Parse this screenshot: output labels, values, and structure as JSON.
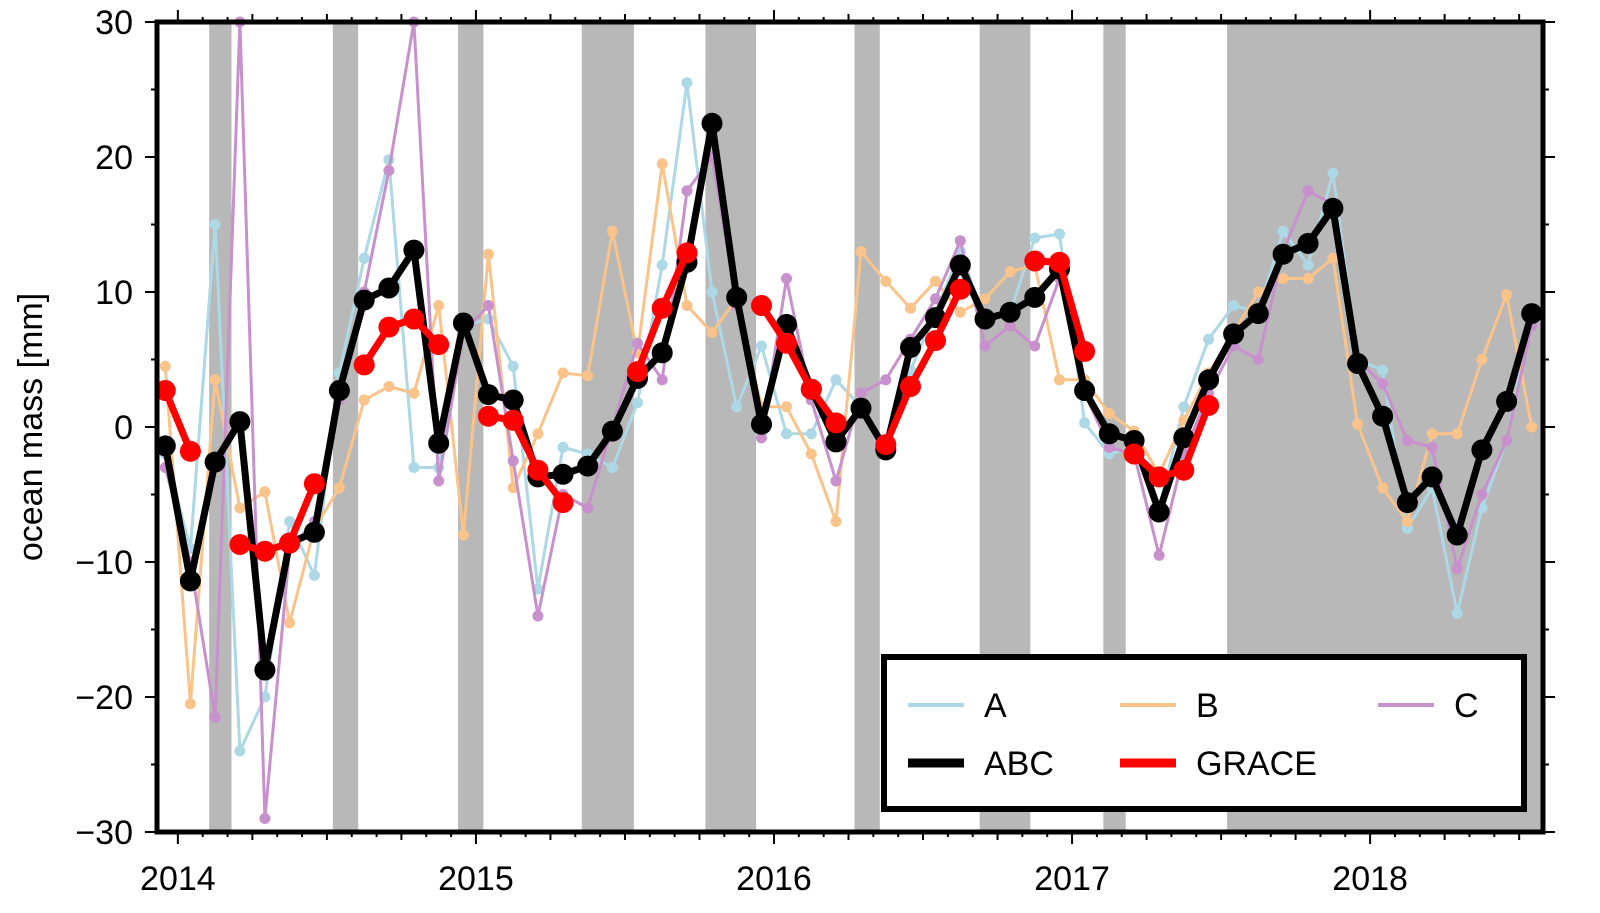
{
  "chart_data": {
    "type": "line",
    "title": "",
    "xlabel": "",
    "ylabel": "ocean mass [mm]",
    "xlim": [
      2013.93,
      2018.58
    ],
    "ylim": [
      -30,
      30
    ],
    "x_ticks": [
      {
        "value": 2014,
        "label": "2014"
      },
      {
        "value": 2015,
        "label": "2015"
      },
      {
        "value": 2016,
        "label": "2016"
      },
      {
        "value": 2017,
        "label": "2017"
      },
      {
        "value": 2018,
        "label": "2018"
      }
    ],
    "y_ticks": [
      {
        "value": -30,
        "label": "−30"
      },
      {
        "value": -20,
        "label": "−20"
      },
      {
        "value": -10,
        "label": "−10"
      },
      {
        "value": 0,
        "label": "0"
      },
      {
        "value": 10,
        "label": "10"
      },
      {
        "value": 20,
        "label": "20"
      },
      {
        "value": 30,
        "label": "30"
      }
    ],
    "gap_periods": [
      [
        2014.105,
        2014.18
      ],
      [
        2014.52,
        2014.605
      ],
      [
        2014.94,
        2015.025
      ],
      [
        2015.355,
        2015.53
      ],
      [
        2015.77,
        2015.94
      ],
      [
        2016.27,
        2016.355
      ],
      [
        2016.69,
        2016.86
      ],
      [
        2017.105,
        2017.18
      ],
      [
        2017.52,
        2018.58
      ]
    ],
    "series": [
      {
        "name": "A",
        "color": "#add8e6",
        "x": [
          2013.958,
          2014.042,
          2014.125,
          2014.208,
          2014.292,
          2014.375,
          2014.458,
          2014.542,
          2014.625,
          2014.708,
          2014.792,
          2014.875,
          2014.958,
          2015.042,
          2015.125,
          2015.208,
          2015.292,
          2015.375,
          2015.458,
          2015.542,
          2015.625,
          2015.708,
          2015.792,
          2015.875,
          2015.958,
          2016.042,
          2016.125,
          2016.208,
          2016.292,
          2016.375,
          2016.458,
          2016.542,
          2016.625,
          2016.708,
          2016.792,
          2016.875,
          2016.958,
          2017.042,
          2017.125,
          2017.208,
          2017.292,
          2017.375,
          2017.458,
          2017.542,
          2017.625,
          2017.708,
          2017.792,
          2017.875,
          2017.958,
          2018.042,
          2018.125,
          2018.208,
          2018.292,
          2018.375,
          2018.458,
          2018.542
        ],
        "values": [
          -2.0,
          -9.0,
          15.0,
          -24.0,
          -20.0,
          -7.0,
          -11.0,
          4.0,
          12.5,
          19.8,
          -3.0,
          -3.0,
          7.5,
          8.0,
          4.5,
          -12.0,
          -1.5,
          -2.0,
          -3.0,
          1.8,
          12.0,
          25.5,
          10.0,
          1.5,
          6.0,
          -0.5,
          -0.5,
          3.5,
          1.5,
          -1.5,
          4.2,
          8.5,
          13.0,
          8.0,
          8.5,
          14.0,
          14.3,
          0.3,
          -2.0,
          -1.5,
          -6.0,
          1.5,
          6.5,
          9.0,
          8.5,
          14.5,
          12.0,
          18.8,
          5.0,
          4.2,
          -7.5,
          -4.5,
          -13.8,
          -6.0,
          -1.0,
          8.5
        ]
      },
      {
        "name": "B",
        "color": "#f9c38a",
        "x": [
          2013.958,
          2014.042,
          2014.125,
          2014.208,
          2014.292,
          2014.375,
          2014.458,
          2014.542,
          2014.625,
          2014.708,
          2014.792,
          2014.875,
          2014.958,
          2015.042,
          2015.125,
          2015.208,
          2015.292,
          2015.375,
          2015.458,
          2015.542,
          2015.625,
          2015.708,
          2015.792,
          2015.875,
          2015.958,
          2016.042,
          2016.125,
          2016.208,
          2016.292,
          2016.375,
          2016.458,
          2016.542,
          2016.625,
          2016.708,
          2016.792,
          2016.875,
          2016.958,
          2017.042,
          2017.125,
          2017.208,
          2017.292,
          2017.375,
          2017.458,
          2017.542,
          2017.625,
          2017.708,
          2017.792,
          2017.875,
          2017.958,
          2018.042,
          2018.125,
          2018.208,
          2018.292,
          2018.375,
          2018.458,
          2018.542
        ],
        "values": [
          4.5,
          -20.5,
          3.5,
          -6.0,
          -4.8,
          -14.5,
          -7.5,
          -4.5,
          2.0,
          3.0,
          2.5,
          9.0,
          -8.0,
          12.8,
          -4.5,
          -0.5,
          4.0,
          3.8,
          14.5,
          5.5,
          19.5,
          9.0,
          7.0,
          9.5,
          1.5,
          1.5,
          -2.0,
          -7.0,
          13.0,
          10.8,
          8.8,
          10.8,
          8.5,
          9.5,
          11.5,
          12.0,
          3.5,
          3.5,
          1.0,
          -0.3,
          -3.5,
          0.5,
          4.0,
          7.0,
          10.0,
          11.0,
          11.0,
          12.5,
          0.2,
          -4.5,
          -7.0,
          -0.5,
          -0.5,
          5.0,
          9.8,
          0.0
        ]
      },
      {
        "name": "C",
        "color": "#c890cc",
        "x": [
          2013.958,
          2014.042,
          2014.125,
          2014.208,
          2014.292,
          2014.375,
          2014.458,
          2014.542,
          2014.625,
          2014.708,
          2014.792,
          2014.875,
          2014.958,
          2015.042,
          2015.125,
          2015.208,
          2015.292,
          2015.375,
          2015.458,
          2015.542,
          2015.625,
          2015.708,
          2015.792,
          2015.875,
          2015.958,
          2016.042,
          2016.125,
          2016.208,
          2016.292,
          2016.375,
          2016.458,
          2016.542,
          2016.625,
          2016.708,
          2016.792,
          2016.875,
          2016.958,
          2017.042,
          2017.125,
          2017.208,
          2017.292,
          2017.375,
          2017.458,
          2017.542,
          2017.625,
          2017.708,
          2017.792,
          2017.875,
          2017.958,
          2018.042,
          2018.125,
          2018.208,
          2018.292,
          2018.375,
          2018.458,
          2018.542
        ],
        "values": [
          -3.0,
          -10.0,
          -21.5,
          30.0,
          -29.0,
          -9.0,
          -7.0,
          2.0,
          10.0,
          19.0,
          30.0,
          -4.0,
          7.0,
          9.0,
          -2.5,
          -14.0,
          -5.0,
          -6.0,
          0.0,
          6.2,
          3.5,
          17.5,
          20.0,
          9.0,
          -0.8,
          11.0,
          2.0,
          -4.0,
          2.5,
          3.5,
          6.5,
          9.5,
          13.8,
          6.0,
          7.5,
          6.0,
          11.0,
          2.5,
          -1.5,
          -2.0,
          -9.5,
          -2.0,
          2.5,
          6.0,
          5.0,
          13.0,
          17.5,
          16.5,
          5.0,
          3.2,
          -1.0,
          -1.5,
          -10.5,
          -5.0,
          -1.0,
          7.5
        ]
      },
      {
        "name": "ABC",
        "color": "#000000",
        "x": [
          2013.958,
          2014.042,
          2014.125,
          2014.208,
          2014.292,
          2014.375,
          2014.458,
          2014.542,
          2014.625,
          2014.708,
          2014.792,
          2014.875,
          2014.958,
          2015.042,
          2015.125,
          2015.208,
          2015.292,
          2015.375,
          2015.458,
          2015.542,
          2015.625,
          2015.708,
          2015.792,
          2015.875,
          2015.958,
          2016.042,
          2016.125,
          2016.208,
          2016.292,
          2016.375,
          2016.458,
          2016.542,
          2016.625,
          2016.708,
          2016.792,
          2016.875,
          2016.958,
          2017.042,
          2017.125,
          2017.208,
          2017.292,
          2017.375,
          2017.458,
          2017.542,
          2017.625,
          2017.708,
          2017.792,
          2017.875,
          2017.958,
          2018.042,
          2018.125,
          2018.208,
          2018.292,
          2018.375,
          2018.458,
          2018.542
        ],
        "values": [
          -1.4,
          -11.4,
          -2.6,
          0.4,
          -18.0,
          -8.6,
          -7.8,
          2.7,
          9.4,
          10.3,
          13.1,
          -1.2,
          7.7,
          2.4,
          2.0,
          -3.7,
          -3.5,
          -2.9,
          -0.3,
          3.6,
          5.5,
          12.2,
          22.5,
          9.6,
          0.2,
          7.6,
          2.8,
          -1.1,
          1.4,
          -1.7,
          5.9,
          8.1,
          12.0,
          8.0,
          8.5,
          9.6,
          11.7,
          2.7,
          -0.5,
          -1.0,
          -6.3,
          -0.8,
          3.5,
          6.9,
          8.4,
          12.8,
          13.6,
          16.2,
          4.7,
          0.8,
          -5.6,
          -3.7,
          -8.0,
          -1.7,
          1.9,
          8.4
        ]
      },
      {
        "name": "GRACE",
        "color": "#ff0000",
        "x": [
          2013.958,
          2014.042,
          2014.208,
          2014.292,
          2014.375,
          2014.458,
          2014.625,
          2014.708,
          2014.792,
          2014.875,
          2015.042,
          2015.125,
          2015.208,
          2015.292,
          2015.542,
          2015.625,
          2015.708,
          2015.958,
          2016.042,
          2016.125,
          2016.208,
          2016.375,
          2016.458,
          2016.542,
          2016.625,
          2016.875,
          2016.958,
          2017.042,
          2017.208,
          2017.292,
          2017.375,
          2017.458
        ],
        "values": [
          2.7,
          -1.8,
          -8.7,
          -9.2,
          -8.6,
          -4.2,
          4.6,
          7.4,
          8.0,
          6.1,
          0.8,
          0.5,
          -3.2,
          -5.6,
          4.1,
          8.8,
          12.9,
          9.0,
          6.2,
          2.8,
          0.3,
          -1.3,
          3.0,
          6.4,
          10.2,
          12.3,
          12.2,
          5.6,
          -2.0,
          -3.7,
          -3.2,
          1.6
        ]
      }
    ],
    "legend": {
      "placement": "bottom-right",
      "entries": [
        "A",
        "B",
        "C",
        "ABC",
        "GRACE"
      ]
    }
  }
}
